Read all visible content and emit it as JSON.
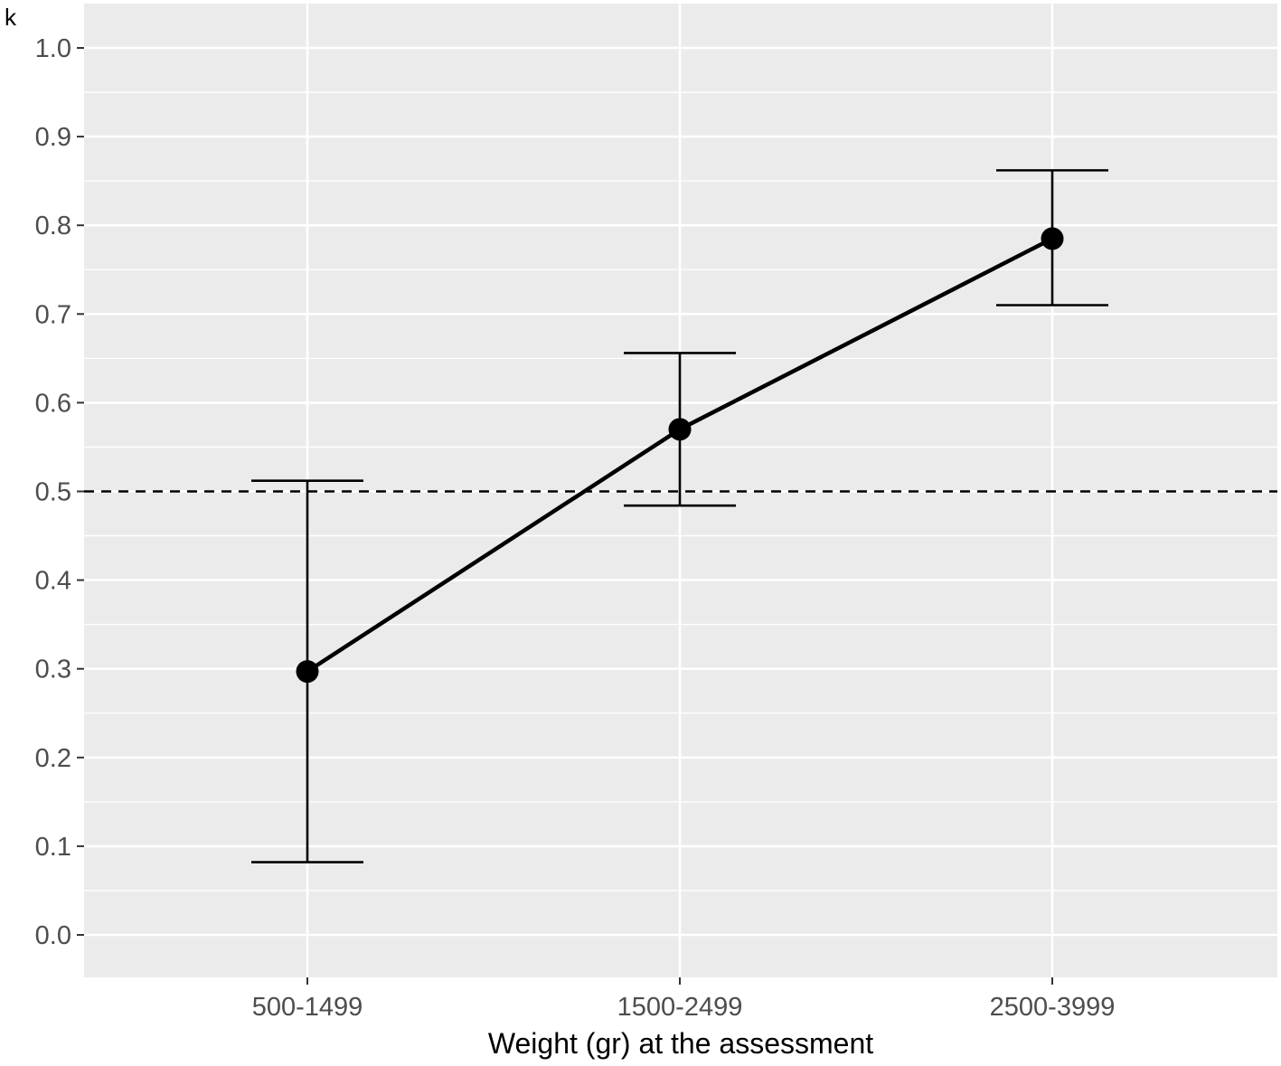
{
  "chart_data": {
    "type": "line",
    "title": "",
    "ylabel": "k",
    "xlabel": "Weight (gr) at the assessment",
    "categories": [
      "500-1499",
      "1500-2499",
      "2500-3999"
    ],
    "series": [
      {
        "values": [
          0.297,
          0.57,
          0.785
        ],
        "ci_low": [
          0.082,
          0.484,
          0.71
        ],
        "ci_high": [
          0.512,
          0.656,
          0.862
        ]
      }
    ],
    "reference_line": {
      "y": 0.5,
      "style": "dashed"
    },
    "ylim": [
      -0.048,
      1.048
    ],
    "yticks": [
      0.0,
      0.1,
      0.2,
      0.3,
      0.4,
      0.5,
      0.6,
      0.7,
      0.8,
      0.9,
      1.0
    ],
    "ytick_labels": [
      "0.0",
      "0.1",
      "0.2",
      "0.3",
      "0.4",
      "0.5",
      "0.6",
      "0.7",
      "0.8",
      "0.9",
      "1.0"
    ],
    "grid": true,
    "legend": "none",
    "colors": {
      "panel": "#ebebeb",
      "grid": "#ffffff",
      "line": "#000000",
      "tick_text": "#4d4d4d"
    }
  }
}
